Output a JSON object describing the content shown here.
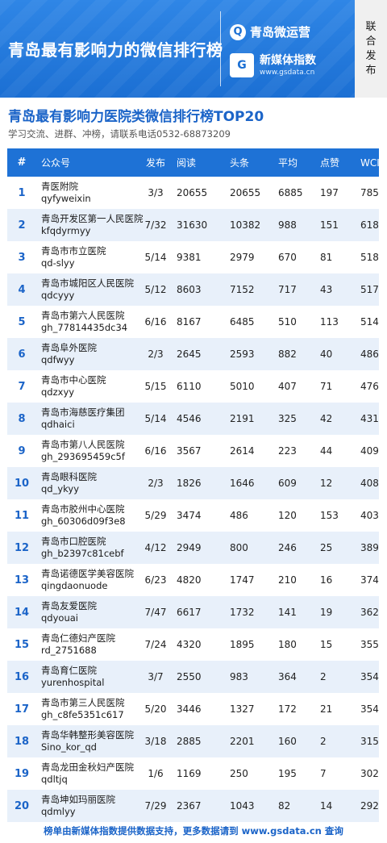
{
  "banner": {
    "title": "青岛最有影响力的微信排行榜",
    "brand1_icon": "q-logo-icon",
    "brand1_name": "青岛微运营",
    "brand2_icon_text": "G",
    "brand2_name": "新媒体指数",
    "brand2_url": "www.gsdata.cn",
    "side_tag": [
      "联",
      "合",
      "发",
      "布"
    ]
  },
  "heading": {
    "title": "青岛最有影响力医院类微信排行榜TOP20",
    "note": "学习交流、进群、冲榜，请联系电话0532-68873209"
  },
  "table": {
    "columns": [
      "#",
      "公众号",
      "发布",
      "阅读",
      "头条",
      "平均",
      "点赞",
      "WCI"
    ],
    "rows": [
      {
        "rank": "1",
        "name": "青医附院",
        "id": "qyfyweixin",
        "pub": "3/3",
        "read": "20655",
        "head": "20655",
        "avg": "6885",
        "like": "197",
        "wci": "785"
      },
      {
        "rank": "2",
        "name": "青岛开发区第一人民医院",
        "id": "kfqdyrmyy",
        "pub": "7/32",
        "read": "31630",
        "head": "10382",
        "avg": "988",
        "like": "151",
        "wci": "618"
      },
      {
        "rank": "3",
        "name": "青岛市市立医院",
        "id": "qd-slyy",
        "pub": "5/14",
        "read": "9381",
        "head": "2979",
        "avg": "670",
        "like": "81",
        "wci": "518"
      },
      {
        "rank": "4",
        "name": "青岛市城阳区人民医院",
        "id": "qdcyyy",
        "pub": "5/12",
        "read": "8603",
        "head": "7152",
        "avg": "717",
        "like": "43",
        "wci": "517"
      },
      {
        "rank": "5",
        "name": "青岛市第六人民医院",
        "id": "gh_77814435dc34",
        "pub": "6/16",
        "read": "8167",
        "head": "6485",
        "avg": "510",
        "like": "113",
        "wci": "514"
      },
      {
        "rank": "6",
        "name": "青岛阜外医院",
        "id": "qdfwyy",
        "pub": "2/3",
        "read": "2645",
        "head": "2593",
        "avg": "882",
        "like": "40",
        "wci": "486"
      },
      {
        "rank": "7",
        "name": "青岛市中心医院",
        "id": "qdzxyy",
        "pub": "5/15",
        "read": "6110",
        "head": "5010",
        "avg": "407",
        "like": "71",
        "wci": "476"
      },
      {
        "rank": "8",
        "name": "青岛市海慈医疗集团",
        "id": "qdhaici",
        "pub": "5/14",
        "read": "4546",
        "head": "2191",
        "avg": "325",
        "like": "42",
        "wci": "431"
      },
      {
        "rank": "9",
        "name": "青岛市第八人民医院",
        "id": "gh_293695459c5f",
        "pub": "6/16",
        "read": "3567",
        "head": "2614",
        "avg": "223",
        "like": "44",
        "wci": "409"
      },
      {
        "rank": "10",
        "name": "青岛眼科医院",
        "id": "qd_ykyy",
        "pub": "2/3",
        "read": "1826",
        "head": "1646",
        "avg": "609",
        "like": "12",
        "wci": "408"
      },
      {
        "rank": "11",
        "name": "青岛市胶州中心医院",
        "id": "gh_60306d09f3e8",
        "pub": "5/29",
        "read": "3474",
        "head": "486",
        "avg": "120",
        "like": "153",
        "wci": "403"
      },
      {
        "rank": "12",
        "name": "青岛市口腔医院",
        "id": "gh_b2397c81cebf",
        "pub": "4/12",
        "read": "2949",
        "head": "800",
        "avg": "246",
        "like": "25",
        "wci": "389"
      },
      {
        "rank": "13",
        "name": "青岛诺德医学美容医院",
        "id": "qingdaonuode",
        "pub": "6/23",
        "read": "4820",
        "head": "1747",
        "avg": "210",
        "like": "16",
        "wci": "374"
      },
      {
        "rank": "14",
        "name": "青岛友爱医院",
        "id": "qdyouai",
        "pub": "7/47",
        "read": "6617",
        "head": "1732",
        "avg": "141",
        "like": "19",
        "wci": "362"
      },
      {
        "rank": "15",
        "name": "青岛仁德妇产医院",
        "id": "rd_2751688",
        "pub": "7/24",
        "read": "4320",
        "head": "1895",
        "avg": "180",
        "like": "15",
        "wci": "355"
      },
      {
        "rank": "16",
        "name": "青岛育仁医院",
        "id": "yurenhospital",
        "pub": "3/7",
        "read": "2550",
        "head": "983",
        "avg": "364",
        "like": "2",
        "wci": "354"
      },
      {
        "rank": "17",
        "name": "青岛市第三人民医院",
        "id": "gh_c8fe5351c617",
        "pub": "5/20",
        "read": "3446",
        "head": "1327",
        "avg": "172",
        "like": "21",
        "wci": "354"
      },
      {
        "rank": "18",
        "name": "青岛华韩整形美容医院",
        "id": "Sino_kor_qd",
        "pub": "3/18",
        "read": "2885",
        "head": "2201",
        "avg": "160",
        "like": "2",
        "wci": "315"
      },
      {
        "rank": "19",
        "name": "青岛龙田金秋妇产医院",
        "id": "qdltjq",
        "pub": "1/6",
        "read": "1169",
        "head": "250",
        "avg": "195",
        "like": "7",
        "wci": "302"
      },
      {
        "rank": "20",
        "name": "青岛坤如玛丽医院",
        "id": "qdmlyy",
        "pub": "7/29",
        "read": "2367",
        "head": "1043",
        "avg": "82",
        "like": "14",
        "wci": "292"
      }
    ]
  },
  "footer": {
    "text": "榜单由新媒体指数提供数据支持，更多数据请到 www.gsdata.cn 查询"
  },
  "colors": {
    "banner_blue": "#1b6fd3",
    "header_blue": "#1e72d6",
    "alt_row": "#e8f0fa",
    "title_blue": "#1b64c8"
  }
}
